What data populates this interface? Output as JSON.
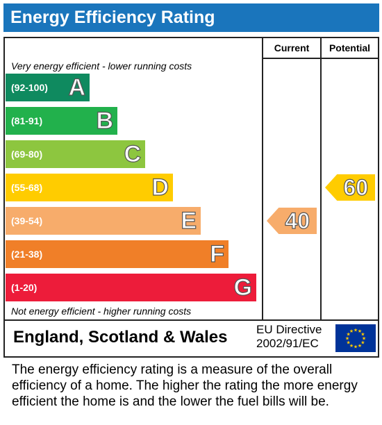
{
  "header": {
    "title": "Energy Efficiency Rating"
  },
  "columns": {
    "current": "Current",
    "potential": "Potential"
  },
  "notes": {
    "top": "Very energy efficient - lower running costs",
    "bottom": "Not energy efficient - higher running costs"
  },
  "bands": [
    {
      "range": "(92-100)",
      "letter": "A",
      "color": "#0f8a5f"
    },
    {
      "range": "(81-91)",
      "letter": "B",
      "color": "#22b14c"
    },
    {
      "range": "(69-80)",
      "letter": "C",
      "color": "#8dc63f"
    },
    {
      "range": "(55-68)",
      "letter": "D",
      "color": "#ffcc00"
    },
    {
      "range": "(39-54)",
      "letter": "E",
      "color": "#f7ac6b"
    },
    {
      "range": "(21-38)",
      "letter": "F",
      "color": "#f07f28"
    },
    {
      "range": "(1-20)",
      "letter": "G",
      "color": "#ed1c3a"
    }
  ],
  "ratings": {
    "current": {
      "value": "40",
      "band": "E",
      "color": "#f7ac6b"
    },
    "potential": {
      "value": "60",
      "band": "D",
      "color": "#ffcc00"
    }
  },
  "footer": {
    "region": "England, Scotland & Wales",
    "eu_line1": "EU Directive",
    "eu_line2": "2002/91/EC",
    "flag_icon": "eu-flag-icon"
  },
  "description": "The energy efficiency rating is a measure of the overall efficiency of a home. The higher the rating the more energy efficient the home is and the lower the fuel bills will be."
}
